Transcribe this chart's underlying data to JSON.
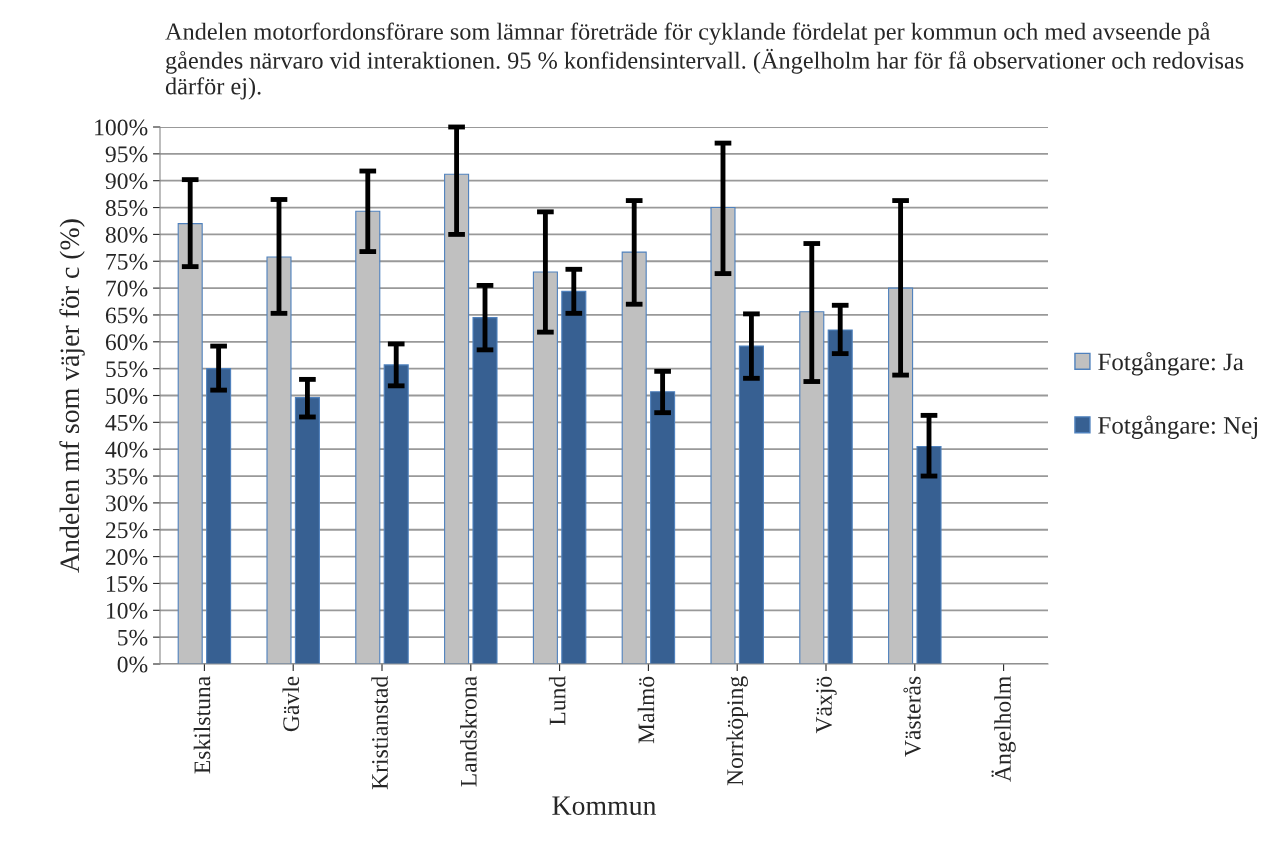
{
  "chart_data": {
    "type": "bar",
    "title": "Andelen motorfordonsförare som lämnar företräde för cyklande fördelat per kommun och med avseende på gåendes närvaro vid interaktionen. 95 % konfidensintervall. (Ängelholm har för få observationer och redovisas därför ej).",
    "xlabel": "Kommun",
    "ylabel": "Andelen mf som väjer för c (%)",
    "categories": [
      "Eskilstuna",
      "Gävle",
      "Kristianstad",
      "Landskrona",
      "Lund",
      "Malmö",
      "Norrköping",
      "Växjö",
      "Västerås",
      "Ängelholm"
    ],
    "series": [
      {
        "name": "Fotgångare: Ja",
        "color": "#c0c0c0",
        "values": [
          82,
          75.8,
          84.3,
          91.2,
          73,
          76.7,
          85,
          65.6,
          70,
          null
        ],
        "errors": [
          [
            74,
            90.2
          ],
          [
            65.3,
            86.5
          ],
          [
            76.8,
            91.8
          ],
          [
            80,
            100
          ],
          [
            61.8,
            84.2
          ],
          [
            67,
            86.3
          ],
          [
            72.7,
            97
          ],
          [
            52.6,
            78.3
          ],
          [
            53.8,
            86.3
          ],
          null
        ]
      },
      {
        "name": "Fotgångare: Nej",
        "color": "#376092",
        "values": [
          55,
          49.6,
          55.7,
          64.5,
          69.4,
          50.7,
          59.2,
          62.2,
          40.5,
          null
        ],
        "errors": [
          [
            51,
            59.2
          ],
          [
            46,
            53
          ],
          [
            51.8,
            59.6
          ],
          [
            58.5,
            70.5
          ],
          [
            65.3,
            73.5
          ],
          [
            46.8,
            54.5
          ],
          [
            53.2,
            65.2
          ],
          [
            57.8,
            66.8
          ],
          [
            35,
            46.3
          ],
          null
        ]
      }
    ],
    "ylim": [
      0,
      100
    ],
    "yticks": [
      {
        "value": 0,
        "label": "0%"
      },
      {
        "value": 5,
        "label": "5%"
      },
      {
        "value": 10,
        "label": "10%"
      },
      {
        "value": 15,
        "label": "15%"
      },
      {
        "value": 20,
        "label": "20%"
      },
      {
        "value": 25,
        "label": "25%"
      },
      {
        "value": 30,
        "label": "30%"
      },
      {
        "value": 35,
        "label": "35%"
      },
      {
        "value": 40,
        "label": "40%"
      },
      {
        "value": 45,
        "label": "45%"
      },
      {
        "value": 50,
        "label": "50%"
      },
      {
        "value": 55,
        "label": "55%"
      },
      {
        "value": 60,
        "label": "60%"
      },
      {
        "value": 65,
        "label": "65%"
      },
      {
        "value": 70,
        "label": "70%"
      },
      {
        "value": 75,
        "label": "75%"
      },
      {
        "value": 80,
        "label": "80%"
      },
      {
        "value": 85,
        "label": "85%"
      },
      {
        "value": 90,
        "label": "90%"
      },
      {
        "value": 95,
        "label": "95%"
      },
      {
        "value": 100,
        "label": "100%"
      }
    ],
    "grid": "y",
    "legend": "right"
  }
}
